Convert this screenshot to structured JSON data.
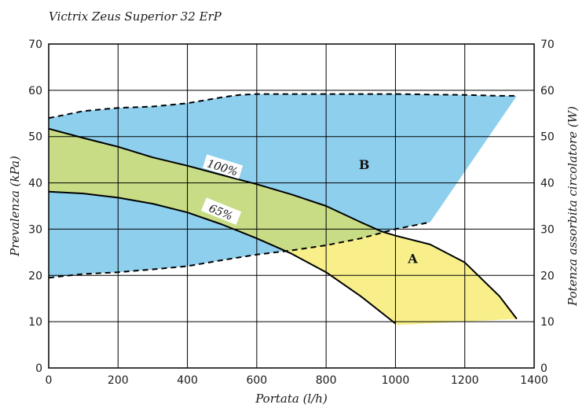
{
  "chart_data": {
    "type": "line",
    "title": "Victrix Zeus Superior 32 ErP",
    "xlabel": "Portata (l/h)",
    "ylabel": "Prevalenza (kPa)",
    "y2label": "Potenza assorbita circolatore (W)",
    "xlim": [
      0,
      1400
    ],
    "ylim": [
      0,
      70
    ],
    "y2lim": [
      0,
      70
    ],
    "x_ticks": [
      0,
      200,
      400,
      600,
      800,
      1000,
      1200,
      1400
    ],
    "y_ticks": [
      0,
      10,
      20,
      30,
      40,
      50,
      60,
      70
    ],
    "y2_ticks": [
      0,
      10,
      20,
      30,
      40,
      50,
      60,
      70
    ],
    "grid": true,
    "colors": {
      "region_b": "#8ecfed",
      "region_a": "#f8ef8a",
      "overlap": "#c7dc85",
      "curve": "#000000",
      "grid": "#000000"
    },
    "series": [
      {
        "name": "100%",
        "style": "solid",
        "x": [
          0,
          100,
          200,
          300,
          400,
          500,
          600,
          700,
          800,
          900,
          960,
          1000,
          1100,
          1200,
          1300,
          1350
        ],
        "y": [
          51.7,
          49.7,
          47.8,
          45.5,
          43.7,
          41.7,
          39.7,
          37.5,
          35.0,
          31.5,
          29.5,
          28.6,
          26.7,
          22.8,
          15.5,
          10.6
        ]
      },
      {
        "name": "65%",
        "style": "solid",
        "x": [
          0,
          100,
          200,
          300,
          400,
          500,
          600,
          700,
          800,
          900,
          1000
        ],
        "y": [
          38.1,
          37.7,
          36.8,
          35.5,
          33.6,
          31.0,
          28.0,
          24.7,
          20.7,
          15.5,
          9.6
        ]
      },
      {
        "name": "",
        "style": "dashed",
        "axis": "secondary",
        "x": [
          0,
          100,
          200,
          300,
          400,
          500,
          550,
          600,
          700,
          800,
          900,
          1000,
          1100,
          1200,
          1300,
          1350
        ],
        "y": [
          54.0,
          55.5,
          56.2,
          56.5,
          57.2,
          58.5,
          59.0,
          59.2,
          59.2,
          59.2,
          59.2,
          59.2,
          59.1,
          59.0,
          58.8,
          58.8
        ]
      },
      {
        "name": "",
        "style": "dashed",
        "axis": "secondary",
        "x": [
          0,
          100,
          200,
          300,
          400,
          500,
          600,
          700,
          800,
          900,
          1000,
          1100
        ],
        "y": [
          19.5,
          20.3,
          20.7,
          21.3,
          22.0,
          23.3,
          24.5,
          25.4,
          26.5,
          28.0,
          30.0,
          31.5
        ]
      }
    ],
    "curve_labels": [
      {
        "text": "100%",
        "x": 500,
        "y": 43.0,
        "angle": 17
      },
      {
        "text": "65%",
        "x": 495,
        "y": 33.4,
        "angle": 22
      }
    ],
    "regions": [
      {
        "label": "B",
        "x": 910,
        "y": 43.0
      },
      {
        "label": "A",
        "x": 1050,
        "y": 22.7
      }
    ]
  }
}
